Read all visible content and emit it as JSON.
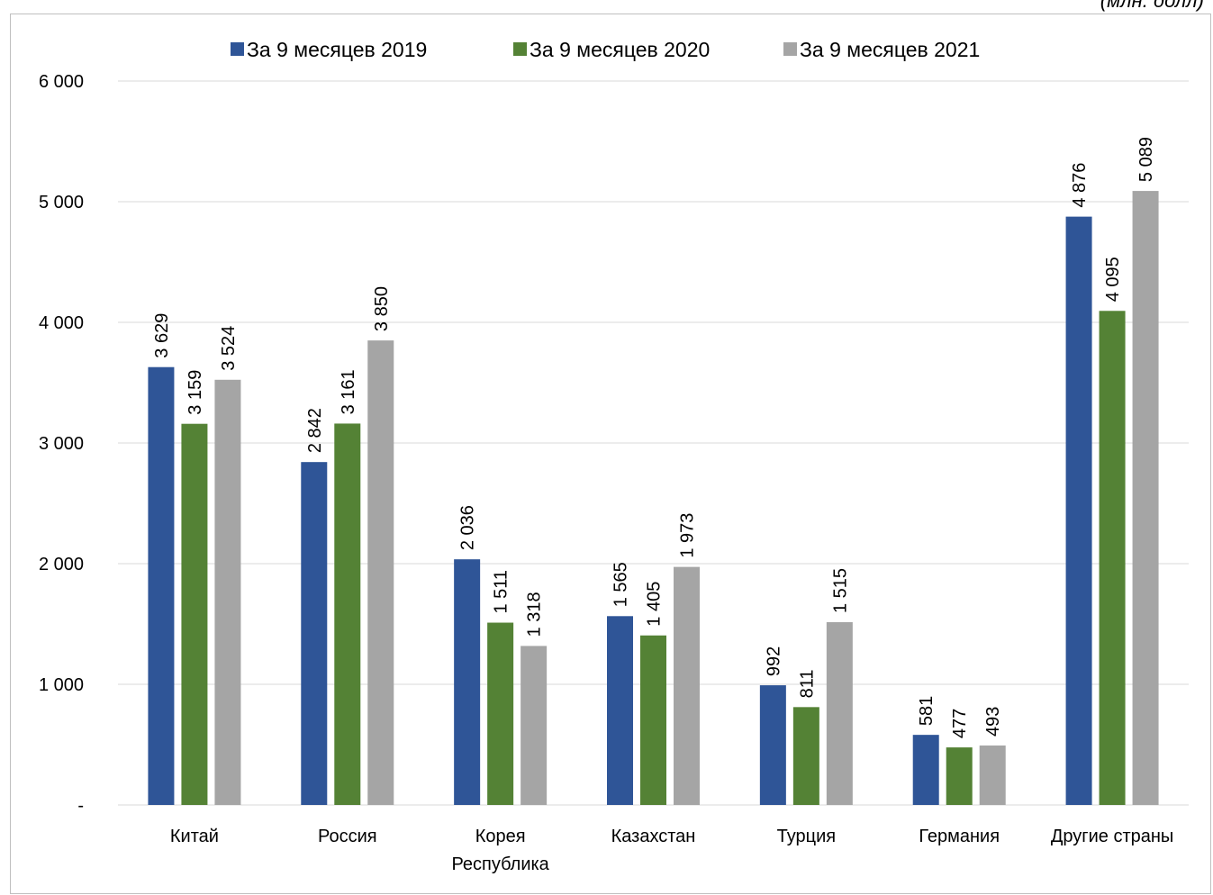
{
  "header": {
    "unit_label": "(млн. долл)"
  },
  "chart_data": {
    "type": "bar",
    "categories": [
      [
        "Китай"
      ],
      [
        "Россия"
      ],
      [
        "Корея",
        "Республика"
      ],
      [
        "Казахстан"
      ],
      [
        "Турция"
      ],
      [
        "Германия"
      ],
      [
        "Другие страны"
      ]
    ],
    "series": [
      {
        "name": "За 9 месяцев 2019",
        "color": "#2F5597",
        "values": [
          3629,
          2842,
          2036,
          1565,
          992,
          581,
          4876
        ]
      },
      {
        "name": "За 9 месяцев 2020",
        "color": "#548235",
        "values": [
          3159,
          3161,
          1511,
          1405,
          811,
          477,
          4095
        ]
      },
      {
        "name": "За 9 месяцев 2021",
        "color": "#A5A5A5",
        "values": [
          3524,
          3850,
          1318,
          1973,
          1515,
          493,
          5089
        ]
      }
    ],
    "value_labels": [
      [
        "3 629",
        "2 842",
        "2 036",
        "1 565",
        "992",
        "581",
        "4 876"
      ],
      [
        "3 159",
        "3 161",
        "1 511",
        "1 405",
        "811",
        "477",
        "4 095"
      ],
      [
        "3 524",
        "3 850",
        "1 318",
        "1 973",
        "1 515",
        "493",
        "5 089"
      ]
    ],
    "yticks": [
      {
        "value": 0,
        "label": "-"
      },
      {
        "value": 1000,
        "label": "1 000"
      },
      {
        "value": 2000,
        "label": "2 000"
      },
      {
        "value": 3000,
        "label": "3 000"
      },
      {
        "value": 4000,
        "label": "4 000"
      },
      {
        "value": 5000,
        "label": "5 000"
      },
      {
        "value": 6000,
        "label": "6 000"
      }
    ],
    "ylim": [
      0,
      6000
    ],
    "grid": true,
    "legend_position": "top-center",
    "gridline_color": "#d9d9d9"
  }
}
